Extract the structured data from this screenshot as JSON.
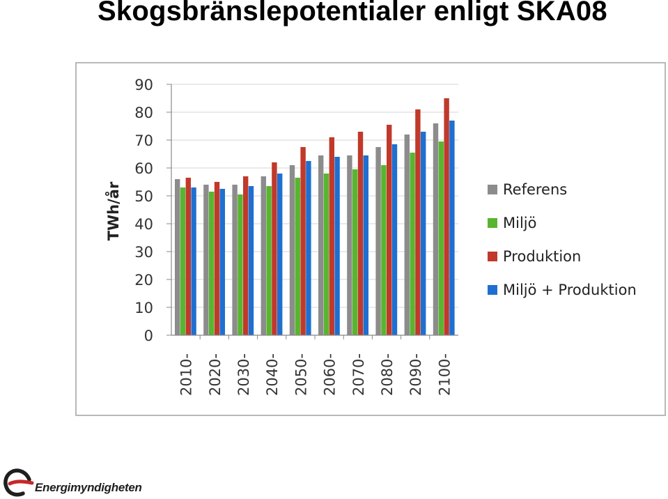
{
  "title": "Skogsbränslepotentialer enligt SKA08",
  "logo": {
    "text": "Energimyndigheten",
    "icon": "energimyndigheten-logo-icon"
  },
  "chart_data": {
    "type": "bar",
    "title": "",
    "xlabel": "",
    "ylabel": "TWh/år",
    "ylim": [
      0,
      90
    ],
    "yticks": [
      0,
      10,
      20,
      30,
      40,
      50,
      60,
      70,
      80,
      90
    ],
    "grid": true,
    "legend": "right",
    "categories": [
      "2010-",
      "2020-",
      "2030-",
      "2040-",
      "2050-",
      "2060-",
      "2070-",
      "2080-",
      "2090-",
      "2100-"
    ],
    "series": [
      {
        "name": "Referens",
        "color": "#8c8c8c",
        "values": [
          56,
          54,
          54,
          57,
          61,
          64.5,
          64.5,
          67.5,
          72,
          76
        ]
      },
      {
        "name": "Miljö",
        "color": "#59b530",
        "values": [
          53,
          51.5,
          50.5,
          53.5,
          56.5,
          58,
          59.5,
          61,
          65.5,
          69.5
        ]
      },
      {
        "name": "Produktion",
        "color": "#c0392b",
        "values": [
          56.5,
          55,
          57,
          62,
          67.5,
          71,
          73,
          75.5,
          81,
          85
        ]
      },
      {
        "name": "Miljö + Produktion",
        "color": "#1f6fd1",
        "values": [
          53,
          52.5,
          53.5,
          58,
          62.5,
          64,
          64.5,
          68.5,
          73,
          77
        ]
      }
    ]
  }
}
